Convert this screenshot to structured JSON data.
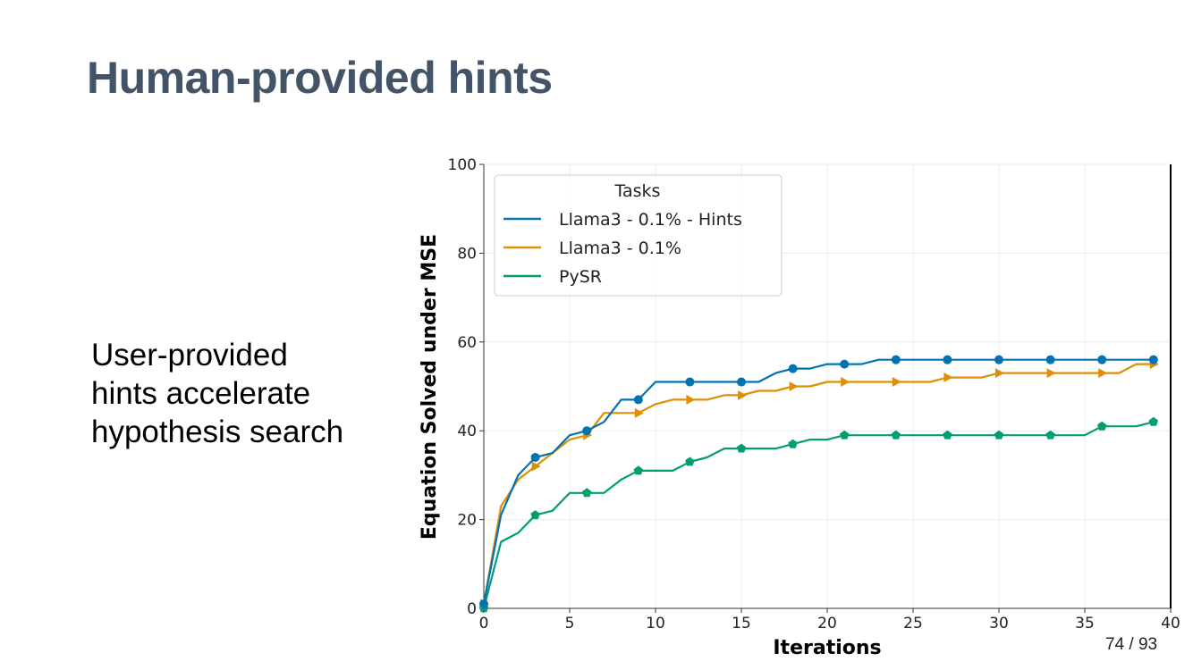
{
  "slide": {
    "title": "Human-provided hints",
    "body_lines": [
      "User-provided",
      "hints accelerate",
      "hypothesis search"
    ],
    "page_number": "74 / 93"
  },
  "chart_data": {
    "type": "line",
    "xlabel": "Iterations",
    "ylabel": "Equation Solved under MSE",
    "xlim": [
      0,
      40
    ],
    "ylim": [
      0,
      100
    ],
    "xticks": [
      0,
      5,
      10,
      15,
      20,
      25,
      30,
      35,
      40
    ],
    "yticks": [
      0,
      20,
      40,
      60,
      80,
      100
    ],
    "grid": true,
    "legend": {
      "title": "Tasks",
      "position": "top-left"
    },
    "series": [
      {
        "name": "Llama3 - 0.1% - Hints",
        "color": "#0173b2",
        "marker": "circle",
        "x": [
          0,
          1,
          2,
          3,
          4,
          5,
          6,
          7,
          8,
          9,
          10,
          11,
          12,
          13,
          14,
          15,
          16,
          17,
          18,
          19,
          20,
          21,
          22,
          23,
          24,
          25,
          26,
          27,
          28,
          29,
          30,
          31,
          32,
          33,
          34,
          35,
          36,
          37,
          38,
          39
        ],
        "y": [
          1,
          21,
          30,
          34,
          35,
          39,
          40,
          42,
          47,
          47,
          51,
          51,
          51,
          51,
          51,
          51,
          51,
          53,
          54,
          54,
          55,
          55,
          55,
          56,
          56,
          56,
          56,
          56,
          56,
          56,
          56,
          56,
          56,
          56,
          56,
          56,
          56,
          56,
          56,
          56
        ]
      },
      {
        "name": "Llama3 - 0.1%",
        "color": "#de8f05",
        "marker": "triangle-right",
        "x": [
          0,
          1,
          2,
          3,
          4,
          5,
          6,
          7,
          8,
          9,
          10,
          11,
          12,
          13,
          14,
          15,
          16,
          17,
          18,
          19,
          20,
          21,
          22,
          23,
          24,
          25,
          26,
          27,
          28,
          29,
          30,
          31,
          32,
          33,
          34,
          35,
          36,
          37,
          38,
          39
        ],
        "y": [
          1,
          23,
          29,
          32,
          35,
          38,
          39,
          44,
          44,
          44,
          46,
          47,
          47,
          47,
          48,
          48,
          49,
          49,
          50,
          50,
          51,
          51,
          51,
          51,
          51,
          51,
          51,
          52,
          52,
          52,
          53,
          53,
          53,
          53,
          53,
          53,
          53,
          53,
          55,
          55
        ]
      },
      {
        "name": "PySR",
        "color": "#029e73",
        "marker": "pentagon",
        "x": [
          0,
          1,
          2,
          3,
          4,
          5,
          6,
          7,
          8,
          9,
          10,
          11,
          12,
          13,
          14,
          15,
          16,
          17,
          18,
          19,
          20,
          21,
          22,
          23,
          24,
          25,
          26,
          27,
          28,
          29,
          30,
          31,
          32,
          33,
          34,
          35,
          36,
          37,
          38,
          39
        ],
        "y": [
          0,
          15,
          17,
          21,
          22,
          26,
          26,
          26,
          29,
          31,
          31,
          31,
          33,
          34,
          36,
          36,
          36,
          36,
          37,
          38,
          38,
          39,
          39,
          39,
          39,
          39,
          39,
          39,
          39,
          39,
          39,
          39,
          39,
          39,
          39,
          39,
          41,
          41,
          41,
          42
        ]
      }
    ]
  }
}
